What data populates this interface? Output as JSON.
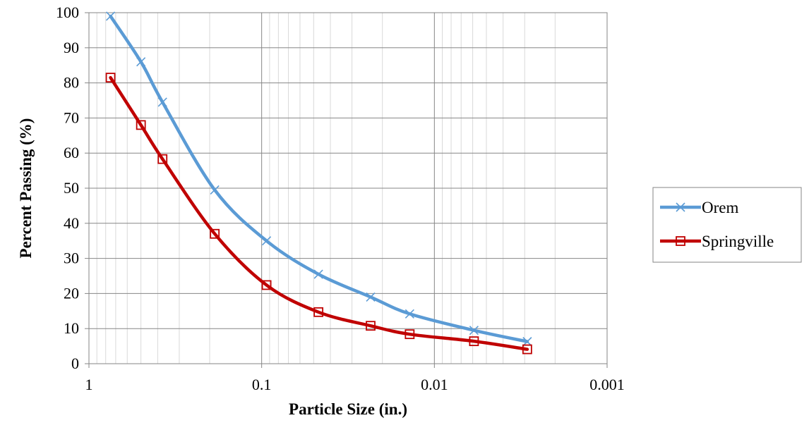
{
  "chart_data": {
    "type": "line",
    "title": "",
    "xlabel": "Particle Size (in.)",
    "ylabel": "Percent Passing (%)",
    "x_scale": "log",
    "x_reversed": true,
    "xlim": [
      1,
      0.001
    ],
    "ylim": [
      0,
      100
    ],
    "x_ticks": [
      1,
      0.1,
      0.01,
      0.001
    ],
    "x_tick_labels": [
      "1",
      "0.1",
      "0.01",
      "0.001"
    ],
    "y_ticks": [
      0,
      10,
      20,
      30,
      40,
      50,
      60,
      70,
      80,
      90,
      100
    ],
    "y_tick_labels": [
      "0",
      "10",
      "20",
      "30",
      "40",
      "50",
      "60",
      "70",
      "80",
      "90",
      "100"
    ],
    "grid": true,
    "legend_position": "right",
    "series": [
      {
        "name": "Orem",
        "color": "#5b9bd5",
        "marker": "x",
        "x": [
          0.75,
          0.5,
          0.375,
          0.187,
          0.0937,
          0.0469,
          0.0234,
          0.0139,
          0.0059,
          0.0029
        ],
        "y": [
          99,
          86,
          74.5,
          49.5,
          35,
          25.5,
          19,
          14.2,
          9.5,
          6.3
        ]
      },
      {
        "name": "Springville",
        "color": "#c00000",
        "marker": "square",
        "x": [
          0.75,
          0.5,
          0.375,
          0.187,
          0.0937,
          0.0469,
          0.0234,
          0.0139,
          0.0059,
          0.0029
        ],
        "y": [
          81.5,
          68,
          58.3,
          37,
          22.4,
          14.7,
          10.8,
          8.4,
          6.4,
          4.1
        ]
      }
    ]
  }
}
